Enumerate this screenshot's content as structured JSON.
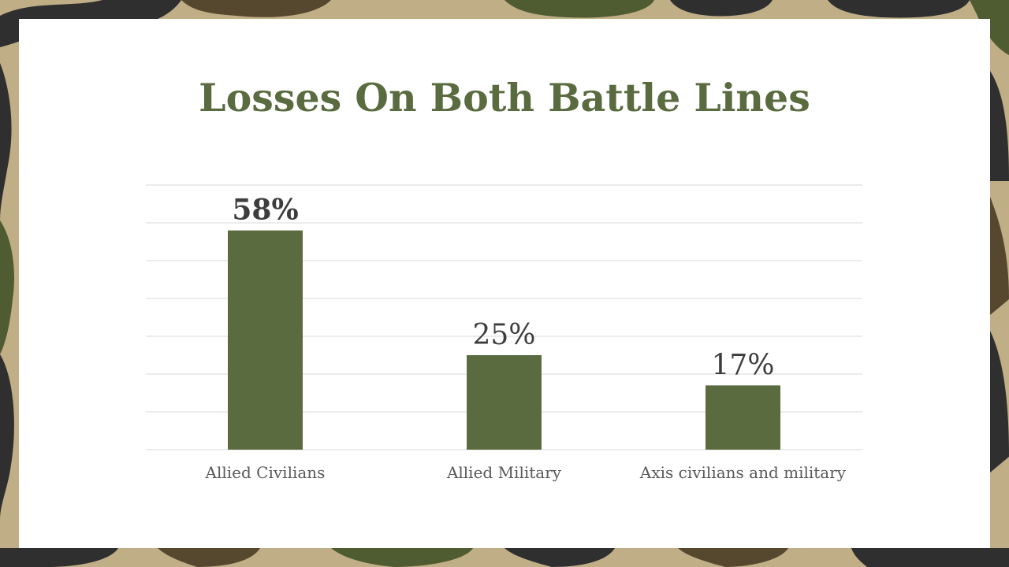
{
  "slide": {
    "title": "Losses On Both Battle Lines"
  },
  "colors": {
    "accent": "#5a6b40",
    "bar": "#5a6b40",
    "label_text": "#3d3d3d",
    "grid": "#d9d9d9",
    "camo": [
      "#bfae86",
      "#4f5b30",
      "#2f2f2f",
      "#56482f"
    ]
  },
  "chart_data": {
    "type": "bar",
    "title": "Losses On Both Battle Lines",
    "categories": [
      "Allied Civilians",
      "Allied Military",
      "Axis civilians and military"
    ],
    "values": [
      58,
      25,
      17
    ],
    "data_labels": [
      "58%",
      "25%",
      "17%"
    ],
    "ylim": [
      0,
      70
    ],
    "grid": true,
    "xlabel": "",
    "ylabel": ""
  }
}
